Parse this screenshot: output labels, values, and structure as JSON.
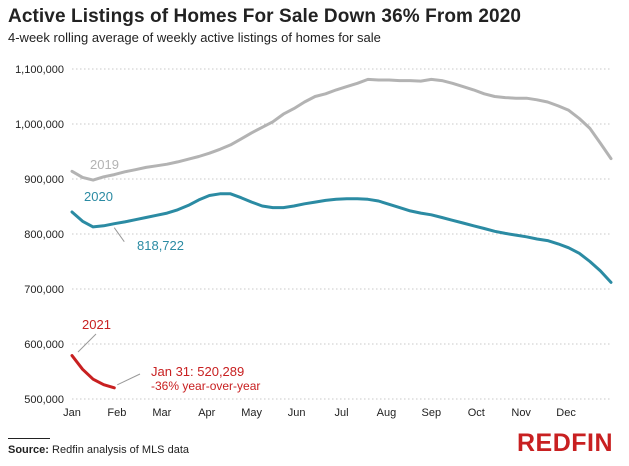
{
  "title": "Active Listings of Homes For Sale Down 36% From 2020",
  "subtitle": "4-week rolling average of weekly active listings of homes for sale",
  "source_label": "Source:",
  "source_text": " Redfin analysis of MLS data",
  "logo_text": "REDFIN",
  "chart_data": {
    "type": "line",
    "title": "Active Listings of Homes For Sale Down 36% From 2020",
    "subtitle": "4-week rolling average of weekly active listings of homes for sale",
    "xlabel": "",
    "ylabel": "",
    "x_categories": [
      "Jan",
      "Feb",
      "Mar",
      "Apr",
      "May",
      "Jun",
      "Jul",
      "Aug",
      "Sep",
      "Oct",
      "Nov",
      "Dec"
    ],
    "x_range": [
      1,
      52
    ],
    "ylim": [
      500000,
      1100000
    ],
    "y_ticks": [
      500000,
      600000,
      700000,
      800000,
      900000,
      1000000,
      1100000
    ],
    "y_tick_labels": [
      "500,000",
      "600,000",
      "700,000",
      "800,000",
      "900,000",
      "1,000,000",
      "1,100,000"
    ],
    "grid": "horizontal dotted",
    "series": [
      {
        "name": "2019",
        "color": "#b3b3b3",
        "x": [
          1,
          2,
          3,
          4,
          5,
          6,
          7,
          8,
          9,
          10,
          11,
          12,
          13,
          14,
          15,
          16,
          17,
          18,
          19,
          20,
          21,
          22,
          23,
          24,
          25,
          26,
          27,
          28,
          29,
          30,
          31,
          32,
          33,
          34,
          35,
          36,
          37,
          38,
          39,
          40,
          41,
          42,
          43,
          44,
          45,
          46,
          47,
          48,
          49,
          50,
          51,
          52
        ],
        "values": [
          914000,
          903000,
          898000,
          904000,
          908000,
          913000,
          917000,
          921000,
          924000,
          927000,
          931000,
          936000,
          941000,
          947000,
          954000,
          962000,
          973000,
          984000,
          994000,
          1004000,
          1018000,
          1028000,
          1040000,
          1050000,
          1055000,
          1062000,
          1068000,
          1074000,
          1081000,
          1080000,
          1080000,
          1079000,
          1079000,
          1078000,
          1081000,
          1079000,
          1074000,
          1068000,
          1062000,
          1055000,
          1050000,
          1048000,
          1047000,
          1047000,
          1044000,
          1040000,
          1033000,
          1025000,
          1010000,
          992000,
          965000,
          937000
        ]
      },
      {
        "name": "2020",
        "color": "#2b8ba3",
        "x": [
          1,
          2,
          3,
          4,
          5,
          6,
          7,
          8,
          9,
          10,
          11,
          12,
          13,
          14,
          15,
          16,
          17,
          18,
          19,
          20,
          21,
          22,
          23,
          24,
          25,
          26,
          27,
          28,
          29,
          30,
          31,
          32,
          33,
          34,
          35,
          36,
          37,
          38,
          39,
          40,
          41,
          42,
          43,
          44,
          45,
          46,
          47,
          48,
          49,
          50,
          51,
          52
        ],
        "values": [
          840000,
          823000,
          813000,
          815000,
          818722,
          822000,
          826000,
          830000,
          834000,
          838000,
          844000,
          852000,
          862000,
          870000,
          873000,
          873000,
          866000,
          858000,
          851000,
          848000,
          848000,
          851000,
          855000,
          858000,
          861000,
          863000,
          864000,
          864000,
          863000,
          860000,
          854000,
          848000,
          842000,
          838000,
          835000,
          830000,
          825000,
          820000,
          815000,
          810000,
          805000,
          801000,
          798000,
          795000,
          791000,
          788000,
          782000,
          775000,
          765000,
          750000,
          733000,
          712000
        ]
      },
      {
        "name": "2021",
        "color": "#c82021",
        "x": [
          1,
          2,
          3,
          4,
          5
        ],
        "values": [
          579000,
          554000,
          536000,
          526000,
          520289
        ]
      }
    ],
    "annotations": [
      {
        "series": "2019",
        "text": "2019"
      },
      {
        "series": "2020",
        "text": "2020"
      },
      {
        "series": "2021",
        "text": "2021"
      },
      {
        "series": "2020",
        "x": 5,
        "value": 818722,
        "text": "818,722"
      },
      {
        "series": "2021",
        "x": 5,
        "value": 520289,
        "text": "Jan 31: 520,289",
        "subtext": "-36% year-over-year"
      }
    ]
  }
}
